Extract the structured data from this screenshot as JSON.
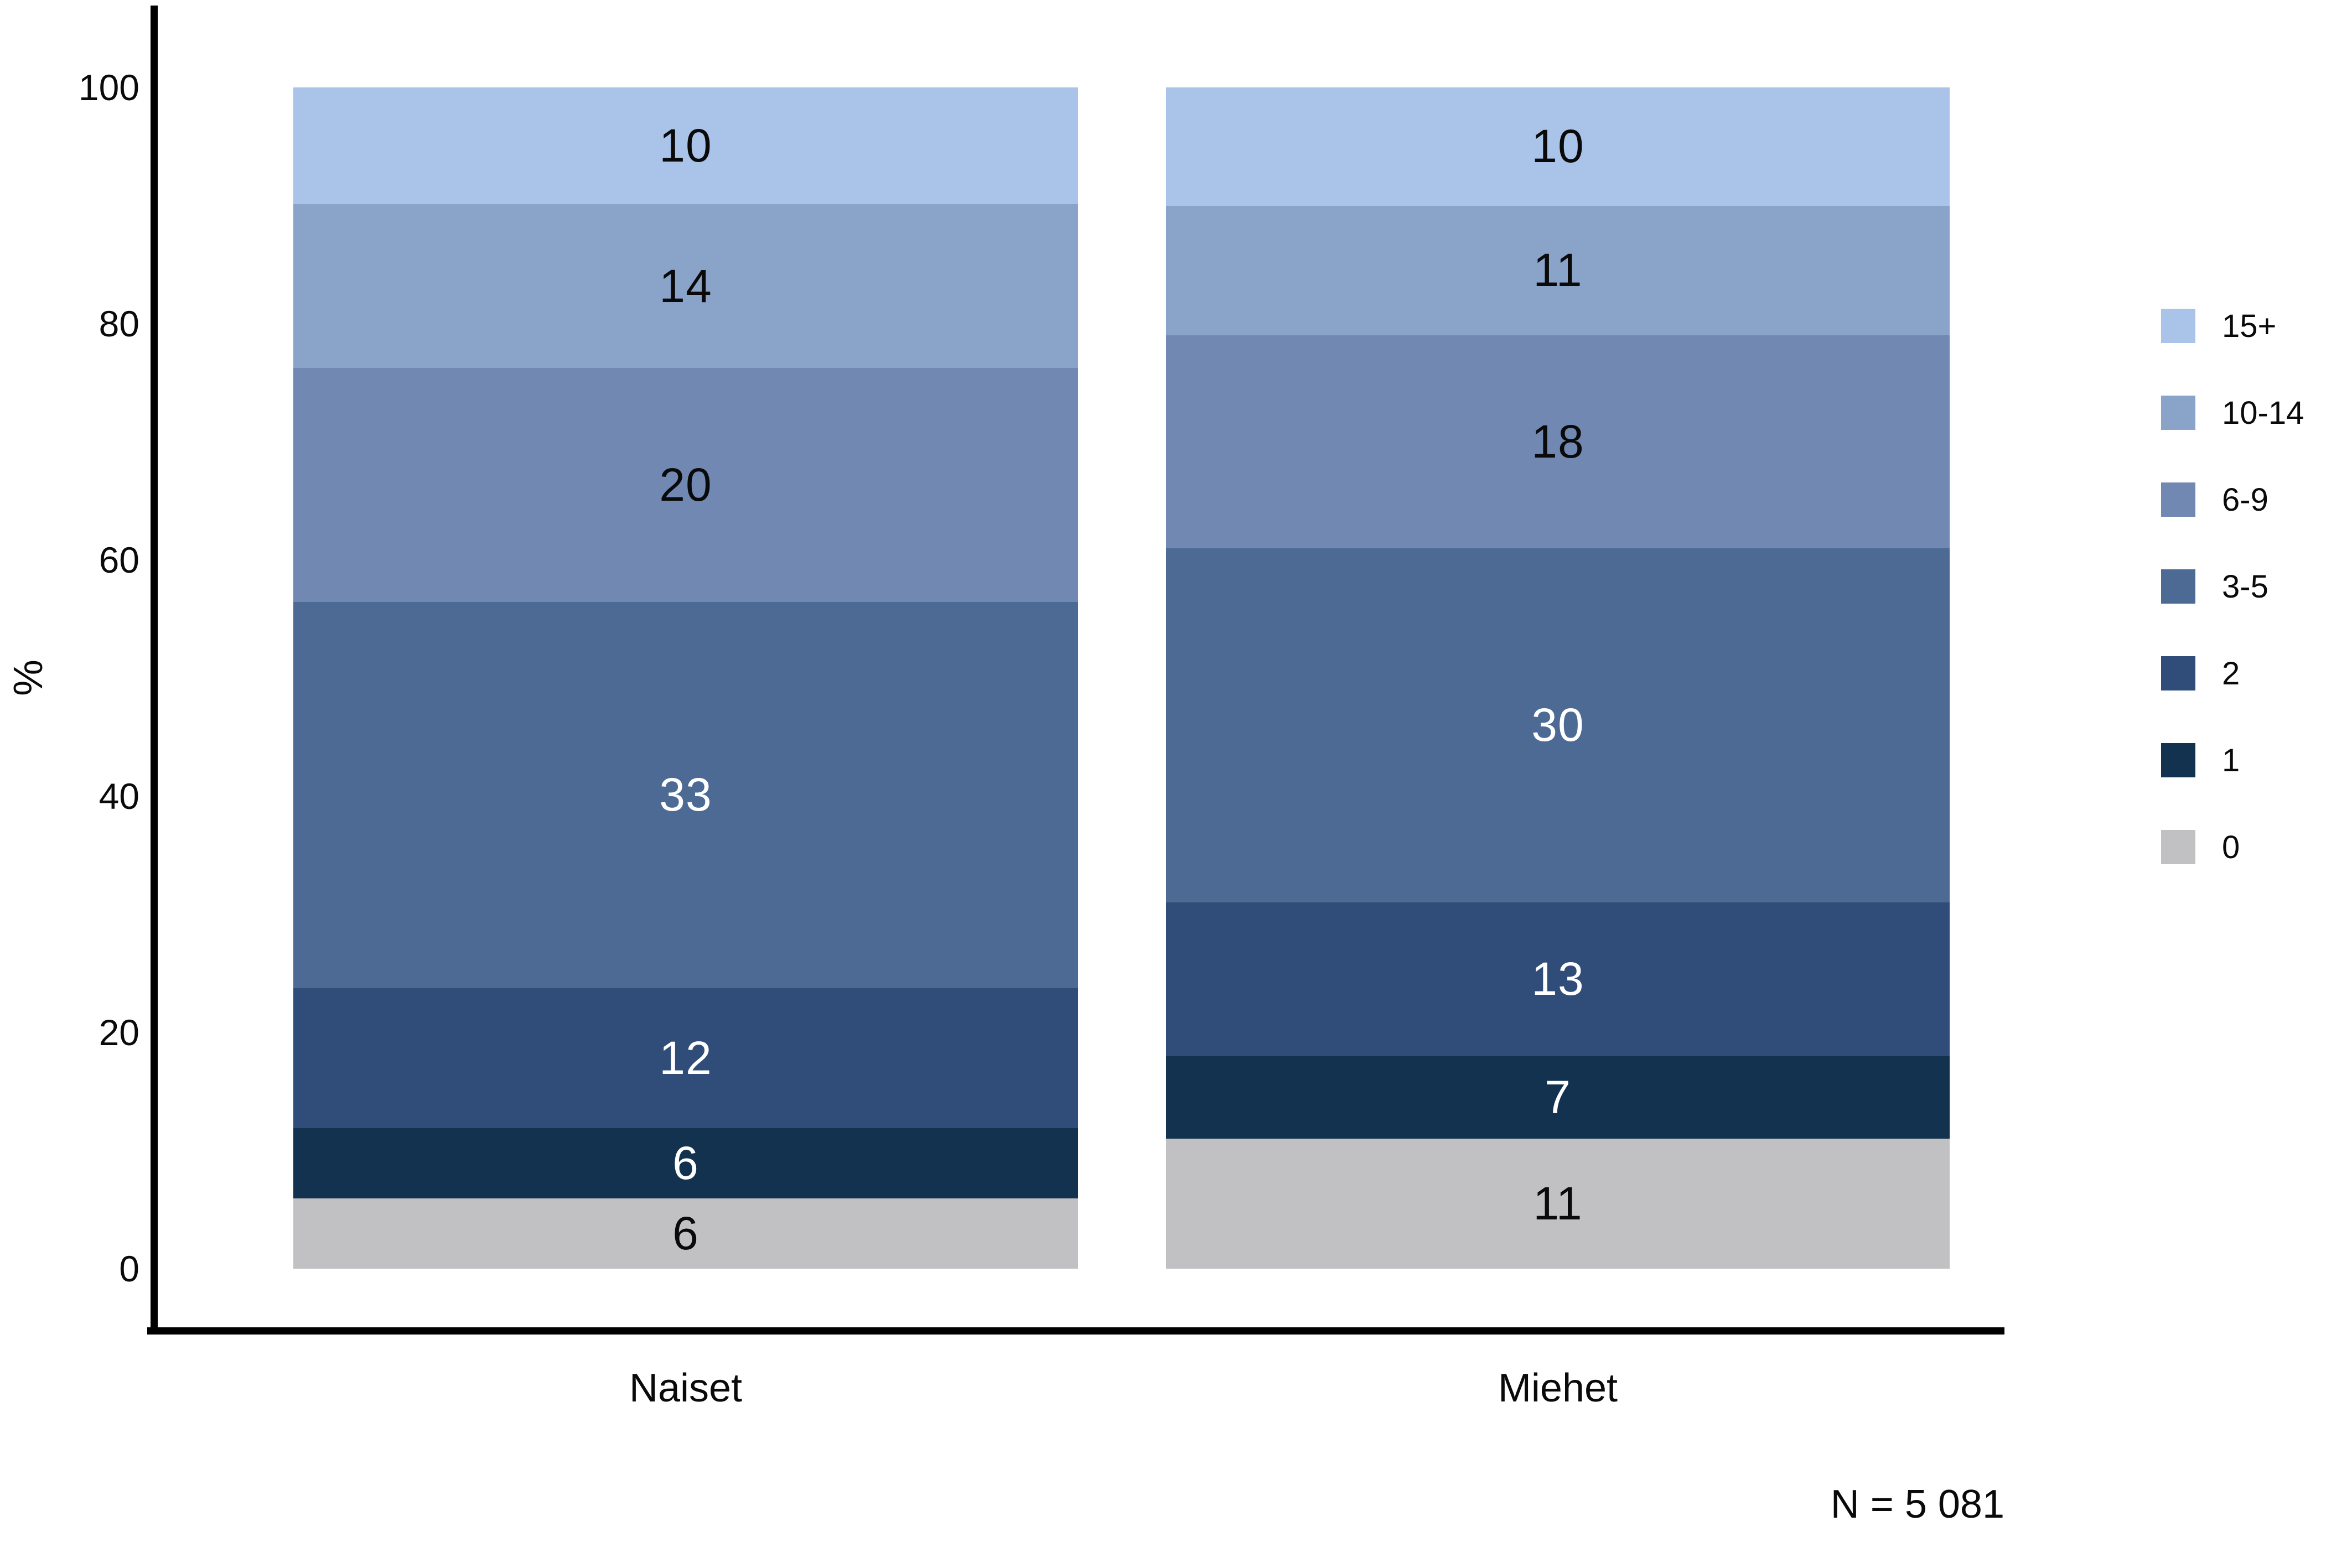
{
  "chart_data": {
    "type": "bar",
    "stacked": true,
    "orientation": "vertical",
    "categories": [
      "Naiset",
      "Miehet"
    ],
    "series": [
      {
        "name": "15+",
        "color": "#a9c3e9",
        "label_color": "#0a0a0a",
        "values": [
          10,
          10
        ]
      },
      {
        "name": "10-14",
        "color": "#8aa3c9",
        "label_color": "#0a0a0a",
        "values": [
          14,
          11
        ]
      },
      {
        "name": "6-9",
        "color": "#7088b2",
        "label_color": "#0a0a0a",
        "values": [
          20,
          18
        ]
      },
      {
        "name": "3-5",
        "color": "#4d6a94",
        "label_color": "#ffffff",
        "values": [
          33,
          30
        ]
      },
      {
        "name": "2",
        "color": "#2f4d78",
        "label_color": "#ffffff",
        "values": [
          12,
          13
        ]
      },
      {
        "name": "1",
        "color": "#12324f",
        "label_color": "#ffffff",
        "values": [
          6,
          7
        ]
      },
      {
        "name": "0",
        "color": "#c1c1c3",
        "label_color": "#0a0a0a",
        "values": [
          6,
          11
        ]
      }
    ],
    "ylabel": "%",
    "yticks": [
      0,
      20,
      40,
      60,
      80,
      100
    ],
    "ylim": [
      0,
      100
    ],
    "grid": false,
    "legend_position": "right",
    "legend_order": [
      "15+",
      "10-14",
      "6-9",
      "3-5",
      "2",
      "1",
      "0"
    ],
    "note": "N = 5 081",
    "axis_color": "#000000",
    "background_color": "#ffffff"
  }
}
